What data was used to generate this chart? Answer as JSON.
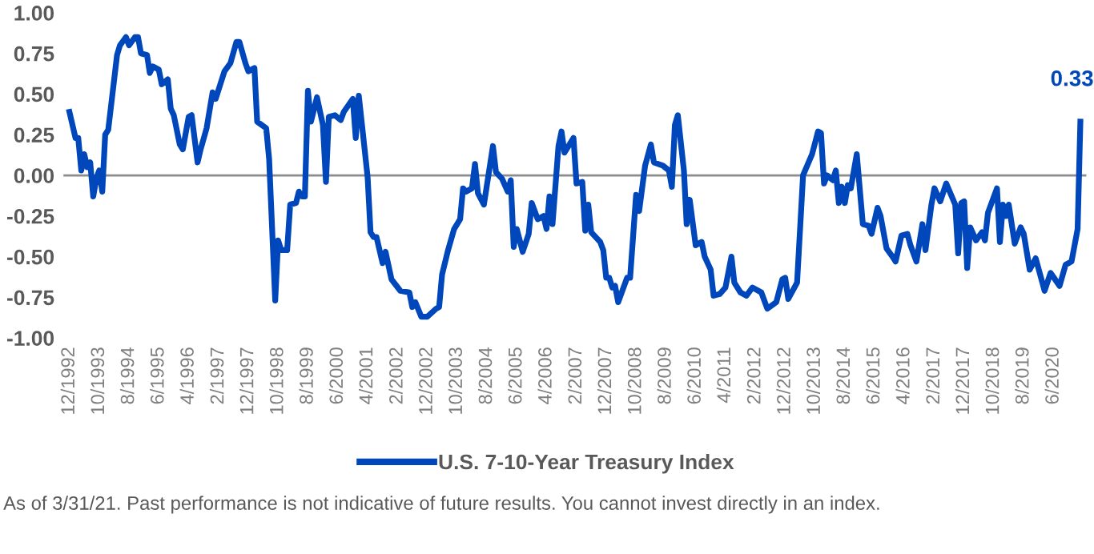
{
  "chart_data": {
    "type": "line",
    "x": [
      "1992-12",
      "1993-02",
      "1993-03",
      "1993-04",
      "1993-05",
      "1993-06",
      "1993-07",
      "1993-08",
      "1993-09",
      "1993-10",
      "1993-11",
      "1993-12",
      "1994-01",
      "1994-04",
      "1994-05",
      "1994-07",
      "1994-08",
      "1994-10",
      "1994-11",
      "1994-12",
      "1995-02",
      "1995-03",
      "1995-04",
      "1995-06",
      "1995-07",
      "1995-09",
      "1995-10",
      "1995-11",
      "1996-01",
      "1996-02",
      "1996-04",
      "1996-05",
      "1996-07",
      "1996-08",
      "1996-10",
      "1996-12",
      "1997-01",
      "1997-04",
      "1997-06",
      "1997-08",
      "1997-09",
      "1997-11",
      "1997-12",
      "1998-02",
      "1998-03",
      "1998-06",
      "1998-07",
      "1998-09",
      "1998-10",
      "1998-11",
      "1999-01",
      "1999-02",
      "1999-04",
      "1999-05",
      "1999-06",
      "1999-07",
      "1999-08",
      "1999-09",
      "1999-11",
      "2000-01",
      "2000-02",
      "2000-03",
      "2000-05",
      "2000-07",
      "2000-08",
      "2000-11",
      "2000-12",
      "2001-01",
      "2001-02",
      "2001-04",
      "2001-05",
      "2001-06",
      "2001-07",
      "2001-09",
      "2001-10",
      "2001-12",
      "2002-03",
      "2002-06",
      "2002-07",
      "2002-08",
      "2002-10",
      "2002-12",
      "2003-03",
      "2003-04",
      "2003-05",
      "2003-07",
      "2003-09",
      "2003-11",
      "2003-12",
      "2004-01",
      "2004-03",
      "2004-04",
      "2004-05",
      "2004-07",
      "2004-10",
      "2004-11",
      "2005-01",
      "2005-03",
      "2005-04",
      "2005-05",
      "2005-06",
      "2005-08",
      "2005-10",
      "2005-11",
      "2006-01",
      "2006-03",
      "2006-04",
      "2006-05",
      "2006-06",
      "2006-08",
      "2006-09",
      "2006-10",
      "2007-01",
      "2007-02",
      "2007-04",
      "2007-05",
      "2007-06",
      "2007-07",
      "2007-10",
      "2007-11",
      "2007-12",
      "2008-01",
      "2008-02",
      "2008-03",
      "2008-04",
      "2008-07",
      "2008-08",
      "2008-10",
      "2008-11",
      "2009-01",
      "2009-03",
      "2009-04",
      "2009-07",
      "2009-09",
      "2009-10",
      "2009-11",
      "2009-12",
      "2010-02",
      "2010-03",
      "2010-04",
      "2010-06",
      "2010-08",
      "2010-09",
      "2010-11",
      "2010-12",
      "2011-02",
      "2011-04",
      "2011-06",
      "2011-07",
      "2011-09",
      "2011-11",
      "2012-01",
      "2012-04",
      "2012-06",
      "2012-09",
      "2012-11",
      "2012-12",
      "2013-01",
      "2013-04",
      "2013-06",
      "2013-09",
      "2013-11",
      "2013-12",
      "2014-01",
      "2014-02",
      "2014-04",
      "2014-05",
      "2014-06",
      "2014-07",
      "2014-08",
      "2014-09",
      "2014-10",
      "2014-12",
      "2015-02",
      "2015-04",
      "2015-05",
      "2015-07",
      "2015-08",
      "2015-10",
      "2015-12",
      "2016-01",
      "2016-03",
      "2016-05",
      "2016-06",
      "2016-08",
      "2016-10",
      "2016-11",
      "2017-01",
      "2017-02",
      "2017-04",
      "2017-06",
      "2017-09",
      "2017-10",
      "2017-11",
      "2017-12",
      "2018-01",
      "2018-02",
      "2018-04",
      "2018-06",
      "2018-07",
      "2018-08",
      "2018-11",
      "2018-12",
      "2019-01",
      "2019-02",
      "2019-03",
      "2019-05",
      "2019-07",
      "2019-08",
      "2019-10",
      "2019-12",
      "2020-03",
      "2020-05",
      "2020-08",
      "2020-10",
      "2020-12",
      "2021-02",
      "2021-03"
    ],
    "series": [
      {
        "name": "U.S. 7-10-Year Treasury Index",
        "color": "#0047bb",
        "values": [
          0.39,
          0.23,
          0.23,
          0.03,
          0.13,
          0.05,
          0.08,
          -0.13,
          -0.02,
          0.03,
          -0.1,
          0.25,
          0.28,
          0.74,
          0.8,
          0.85,
          0.8,
          0.85,
          0.85,
          0.75,
          0.74,
          0.63,
          0.67,
          0.65,
          0.56,
          0.59,
          0.41,
          0.37,
          0.19,
          0.16,
          0.36,
          0.37,
          0.08,
          0.16,
          0.29,
          0.51,
          0.47,
          0.64,
          0.69,
          0.82,
          0.82,
          0.69,
          0.64,
          0.66,
          0.33,
          0.29,
          0.1,
          -0.77,
          -0.4,
          -0.46,
          -0.46,
          -0.18,
          -0.17,
          -0.1,
          -0.13,
          -0.13,
          0.52,
          0.33,
          0.48,
          0.31,
          -0.04,
          0.36,
          0.37,
          0.34,
          0.39,
          0.47,
          0.23,
          0.49,
          0.32,
          -0.01,
          -0.35,
          -0.38,
          -0.38,
          -0.54,
          -0.47,
          -0.64,
          -0.71,
          -0.72,
          -0.81,
          -0.78,
          -0.87,
          -0.87,
          -0.82,
          -0.81,
          -0.61,
          -0.46,
          -0.33,
          -0.27,
          -0.08,
          -0.1,
          -0.08,
          0.07,
          -0.11,
          -0.18,
          0.18,
          0.02,
          -0.02,
          -0.1,
          -0.03,
          -0.44,
          -0.33,
          -0.47,
          -0.36,
          -0.17,
          -0.27,
          -0.25,
          -0.33,
          -0.13,
          -0.3,
          0.18,
          0.27,
          0.14,
          0.23,
          -0.05,
          -0.04,
          -0.34,
          -0.18,
          -0.35,
          -0.41,
          -0.46,
          -0.63,
          -0.63,
          -0.69,
          -0.68,
          -0.78,
          -0.63,
          -0.63,
          -0.12,
          -0.22,
          0.06,
          0.19,
          0.08,
          0.06,
          0.03,
          -0.07,
          0.31,
          0.37,
          0.03,
          -0.3,
          -0.15,
          -0.43,
          -0.41,
          -0.5,
          -0.58,
          -0.74,
          -0.73,
          -0.69,
          -0.5,
          -0.66,
          -0.72,
          -0.74,
          -0.69,
          -0.72,
          -0.82,
          -0.78,
          -0.64,
          -0.63,
          -0.76,
          -0.66,
          0.0,
          0.13,
          0.27,
          0.26,
          -0.05,
          0.0,
          -0.03,
          0.03,
          -0.17,
          -0.07,
          -0.17,
          -0.06,
          -0.08,
          0.13,
          -0.3,
          -0.31,
          -0.36,
          -0.2,
          -0.25,
          -0.45,
          -0.5,
          -0.53,
          -0.37,
          -0.36,
          -0.43,
          -0.53,
          -0.3,
          -0.46,
          -0.18,
          -0.08,
          -0.16,
          -0.05,
          -0.18,
          -0.48,
          -0.17,
          -0.16,
          -0.57,
          -0.32,
          -0.4,
          -0.35,
          -0.4,
          -0.23,
          -0.08,
          -0.41,
          -0.18,
          -0.25,
          -0.18,
          -0.42,
          -0.32,
          -0.36,
          -0.58,
          -0.51,
          -0.71,
          -0.6,
          -0.68,
          -0.55,
          -0.53,
          -0.33,
          0.33
        ]
      }
    ],
    "xlim": [
      "1992-10",
      "2021-05"
    ],
    "xticks": [
      {
        "value": "1992-12",
        "label": "12/1992"
      },
      {
        "value": "1993-10",
        "label": "10/1993"
      },
      {
        "value": "1994-08",
        "label": "8/1994"
      },
      {
        "value": "1995-06",
        "label": "6/1995"
      },
      {
        "value": "1996-04",
        "label": "4/1996"
      },
      {
        "value": "1997-02",
        "label": "2/1997"
      },
      {
        "value": "1997-12",
        "label": "12/1997"
      },
      {
        "value": "1998-10",
        "label": "10/1998"
      },
      {
        "value": "1999-08",
        "label": "8/1999"
      },
      {
        "value": "2000-06",
        "label": "6/2000"
      },
      {
        "value": "2001-04",
        "label": "4/2001"
      },
      {
        "value": "2002-02",
        "label": "2/2002"
      },
      {
        "value": "2002-12",
        "label": "12/2002"
      },
      {
        "value": "2003-10",
        "label": "10/2003"
      },
      {
        "value": "2004-08",
        "label": "8/2004"
      },
      {
        "value": "2005-06",
        "label": "6/2005"
      },
      {
        "value": "2006-04",
        "label": "4/2006"
      },
      {
        "value": "2007-02",
        "label": "2/2007"
      },
      {
        "value": "2007-12",
        "label": "12/2007"
      },
      {
        "value": "2008-10",
        "label": "10/2008"
      },
      {
        "value": "2009-08",
        "label": "8/2009"
      },
      {
        "value": "2010-06",
        "label": "6/2010"
      },
      {
        "value": "2011-04",
        "label": "4/2011"
      },
      {
        "value": "2012-02",
        "label": "2/2012"
      },
      {
        "value": "2012-12",
        "label": "12/2012"
      },
      {
        "value": "2013-10",
        "label": "10/2013"
      },
      {
        "value": "2014-08",
        "label": "8/2014"
      },
      {
        "value": "2015-06",
        "label": "6/2015"
      },
      {
        "value": "2016-04",
        "label": "4/2016"
      },
      {
        "value": "2017-02",
        "label": "2/2017"
      },
      {
        "value": "2017-12",
        "label": "12/2017"
      },
      {
        "value": "2018-10",
        "label": "10/2018"
      },
      {
        "value": "2019-08",
        "label": "8/2019"
      },
      {
        "value": "2020-06",
        "label": "6/2020"
      }
    ],
    "ylim": [
      -1,
      1
    ],
    "yticks": [
      {
        "value": -1,
        "label": "-1.00"
      },
      {
        "value": -0.75,
        "label": "-0.75"
      },
      {
        "value": -0.5,
        "label": "-0.50"
      },
      {
        "value": -0.25,
        "label": "-0.25"
      },
      {
        "value": 0,
        "label": "0.00"
      },
      {
        "value": 0.25,
        "label": "0.25"
      },
      {
        "value": 0.5,
        "label": "0.50"
      },
      {
        "value": 0.75,
        "label": "0.75"
      },
      {
        "value": 1,
        "label": "1.00"
      }
    ],
    "ref_lines": [
      {
        "axis": "y",
        "value": 0,
        "color": "#8c8c8c"
      }
    ],
    "annotations": [
      {
        "text": "0.33",
        "x": "2021-03",
        "y": 0.33
      },
      "As of 3/31/21. Past performance is not indicative of future results. You cannot invest directly in an index."
    ],
    "legend": "bottom",
    "grid": false,
    "line_style": "solid",
    "marker": "none"
  }
}
